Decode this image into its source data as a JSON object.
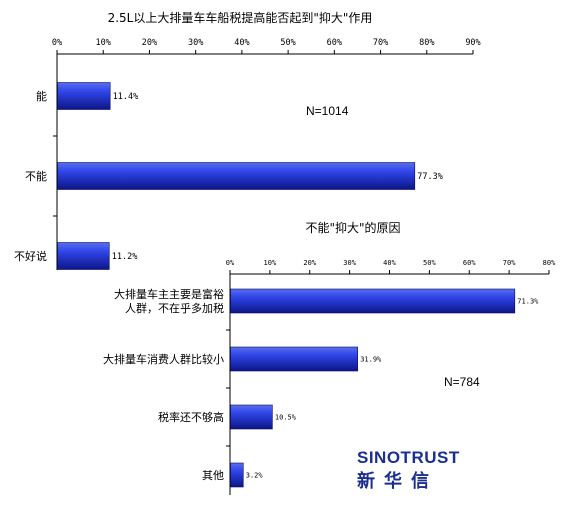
{
  "chart_data": [
    {
      "type": "bar",
      "orientation": "horizontal",
      "title": "2.5L以上大排量车车船税提高能否起到\"抑大\"作用",
      "categories": [
        "能",
        "不能",
        "不好说"
      ],
      "values": [
        11.4,
        77.3,
        11.2
      ],
      "value_labels": [
        "11.4%",
        "77.3%",
        "11.2%"
      ],
      "xlim": [
        0,
        90
      ],
      "xticks": [
        "0%",
        "10%",
        "20%",
        "30%",
        "40%",
        "50%",
        "60%",
        "70%",
        "80%",
        "90%"
      ],
      "annotation": "N=1014",
      "grid": false,
      "bar_color": "#2a35c9"
    },
    {
      "type": "bar",
      "orientation": "horizontal",
      "title": "不能\"抑大\"的原因",
      "categories": [
        [
          "大排量车主主要是富裕",
          "人群，不在乎多加税"
        ],
        [
          "大排量车消费人群比较小"
        ],
        [
          "税率还不够高"
        ],
        [
          "其他"
        ]
      ],
      "values": [
        71.3,
        31.9,
        10.5,
        3.2
      ],
      "value_labels": [
        "71.3%",
        "31.9%",
        "10.5%",
        "3.2%"
      ],
      "xlim": [
        0,
        80
      ],
      "xticks": [
        "0%",
        "10%",
        "20%",
        "30%",
        "40%",
        "50%",
        "60%",
        "70%",
        "80%"
      ],
      "annotation": "N=784",
      "grid": false,
      "bar_color": "#2a35c9"
    }
  ],
  "brand": {
    "en": "SINOTRUST",
    "cn": "新华信"
  }
}
